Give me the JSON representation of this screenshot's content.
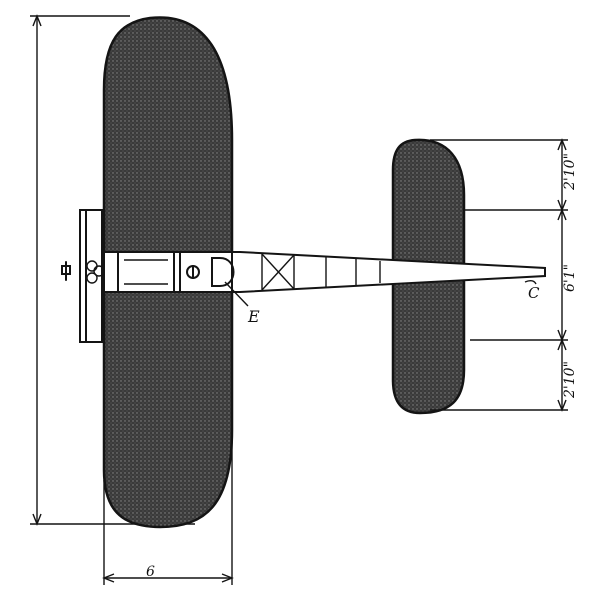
{
  "labels": {
    "e": "E",
    "c": "C",
    "wing_chord": "6",
    "tail_top_span": "2'10\"",
    "tail_mid_span": "6'1\"",
    "tail_bottom_span": "2'10\""
  },
  "colors": {
    "ink": "#141414",
    "paper": "#ffffff",
    "fill_dark": "#2a2a2a"
  }
}
